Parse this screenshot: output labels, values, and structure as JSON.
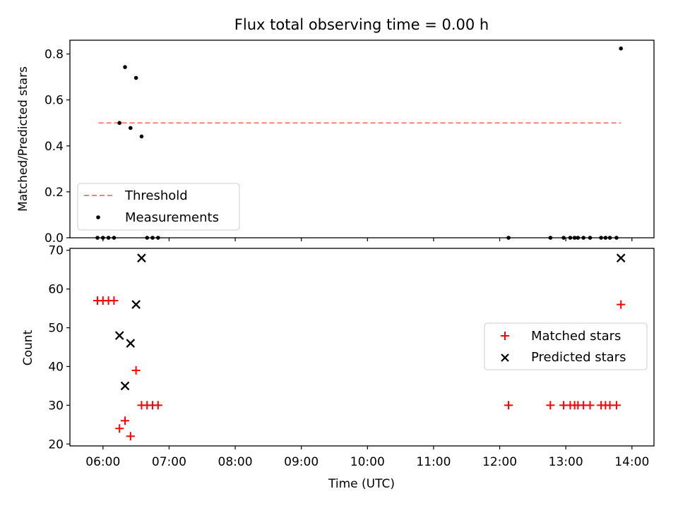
{
  "figure": {
    "title": "Flux total observing time = 0.00 h",
    "xlabel": "Time (UTC)"
  },
  "colors": {
    "threshold": "#ff7f7f",
    "measurement": "#000000",
    "matched": "#ff0000",
    "predicted": "#000000"
  },
  "chart_data": [
    {
      "type": "scatter",
      "name": "ratio-panel",
      "ylabel": "Matched/Predicted stars",
      "xlim": [
        "05:30",
        "14:20"
      ],
      "ylim": [
        0,
        0.86
      ],
      "yticks": [
        "0.0",
        "0.2",
        "0.4",
        "0.6",
        "0.8"
      ],
      "xticks": [
        "06:00",
        "07:00",
        "08:00",
        "09:00",
        "10:00",
        "11:00",
        "12:00",
        "13:00",
        "14:00"
      ],
      "legend": {
        "position": "lower-left",
        "entries": [
          "Threshold",
          "Measurements"
        ]
      },
      "threshold": {
        "label": "Threshold",
        "y": 0.5,
        "x": [
          "05:56",
          "13:50"
        ]
      },
      "series": [
        {
          "name": "Measurements",
          "points": [
            {
              "x": "05:55",
              "y": 0.0
            },
            {
              "x": "06:00",
              "y": 0.0
            },
            {
              "x": "06:05",
              "y": 0.0
            },
            {
              "x": "06:10",
              "y": 0.0
            },
            {
              "x": "06:15",
              "y": 0.5
            },
            {
              "x": "06:20",
              "y": 0.743
            },
            {
              "x": "06:25",
              "y": 0.478
            },
            {
              "x": "06:30",
              "y": 0.696
            },
            {
              "x": "06:35",
              "y": 0.441
            },
            {
              "x": "06:40",
              "y": 0.0
            },
            {
              "x": "06:45",
              "y": 0.0
            },
            {
              "x": "06:50",
              "y": 0.0
            },
            {
              "x": "12:08",
              "y": 0.0
            },
            {
              "x": "12:46",
              "y": 0.0
            },
            {
              "x": "12:58",
              "y": 0.0
            },
            {
              "x": "13:04",
              "y": 0.0
            },
            {
              "x": "13:08",
              "y": 0.0
            },
            {
              "x": "13:11",
              "y": 0.0
            },
            {
              "x": "13:16",
              "y": 0.0
            },
            {
              "x": "13:22",
              "y": 0.0
            },
            {
              "x": "13:32",
              "y": 0.0
            },
            {
              "x": "13:36",
              "y": 0.0
            },
            {
              "x": "13:40",
              "y": 0.0
            },
            {
              "x": "13:46",
              "y": 0.0
            },
            {
              "x": "13:50",
              "y": 0.824
            }
          ]
        }
      ]
    },
    {
      "type": "scatter",
      "name": "count-panel",
      "ylabel": "Count",
      "xlim": [
        "05:30",
        "14:20"
      ],
      "ylim": [
        19.5,
        70.5
      ],
      "yticks": [
        "20",
        "30",
        "40",
        "50",
        "60",
        "70"
      ],
      "xticks": [
        "06:00",
        "07:00",
        "08:00",
        "09:00",
        "10:00",
        "11:00",
        "12:00",
        "13:00",
        "14:00"
      ],
      "legend": {
        "position": "center-right",
        "entries": [
          "Matched stars",
          "Predicted stars"
        ]
      },
      "series": [
        {
          "name": "Matched stars",
          "marker": "plus",
          "points": [
            {
              "x": "05:55",
              "y": 57
            },
            {
              "x": "06:00",
              "y": 57
            },
            {
              "x": "06:05",
              "y": 57
            },
            {
              "x": "06:10",
              "y": 57
            },
            {
              "x": "06:15",
              "y": 24
            },
            {
              "x": "06:20",
              "y": 26
            },
            {
              "x": "06:25",
              "y": 22
            },
            {
              "x": "06:30",
              "y": 39
            },
            {
              "x": "06:35",
              "y": 30
            },
            {
              "x": "06:40",
              "y": 30
            },
            {
              "x": "06:45",
              "y": 30
            },
            {
              "x": "06:50",
              "y": 30
            },
            {
              "x": "12:08",
              "y": 30
            },
            {
              "x": "12:46",
              "y": 30
            },
            {
              "x": "12:58",
              "y": 30
            },
            {
              "x": "13:04",
              "y": 30
            },
            {
              "x": "13:08",
              "y": 30
            },
            {
              "x": "13:11",
              "y": 30
            },
            {
              "x": "13:16",
              "y": 30
            },
            {
              "x": "13:22",
              "y": 30
            },
            {
              "x": "13:32",
              "y": 30
            },
            {
              "x": "13:36",
              "y": 30
            },
            {
              "x": "13:40",
              "y": 30
            },
            {
              "x": "13:46",
              "y": 30
            },
            {
              "x": "13:50",
              "y": 56
            }
          ]
        },
        {
          "name": "Predicted stars",
          "marker": "x",
          "points": [
            {
              "x": "06:15",
              "y": 48
            },
            {
              "x": "06:20",
              "y": 35
            },
            {
              "x": "06:25",
              "y": 46
            },
            {
              "x": "06:30",
              "y": 56
            },
            {
              "x": "06:35",
              "y": 68
            },
            {
              "x": "13:50",
              "y": 68
            }
          ]
        }
      ]
    }
  ]
}
